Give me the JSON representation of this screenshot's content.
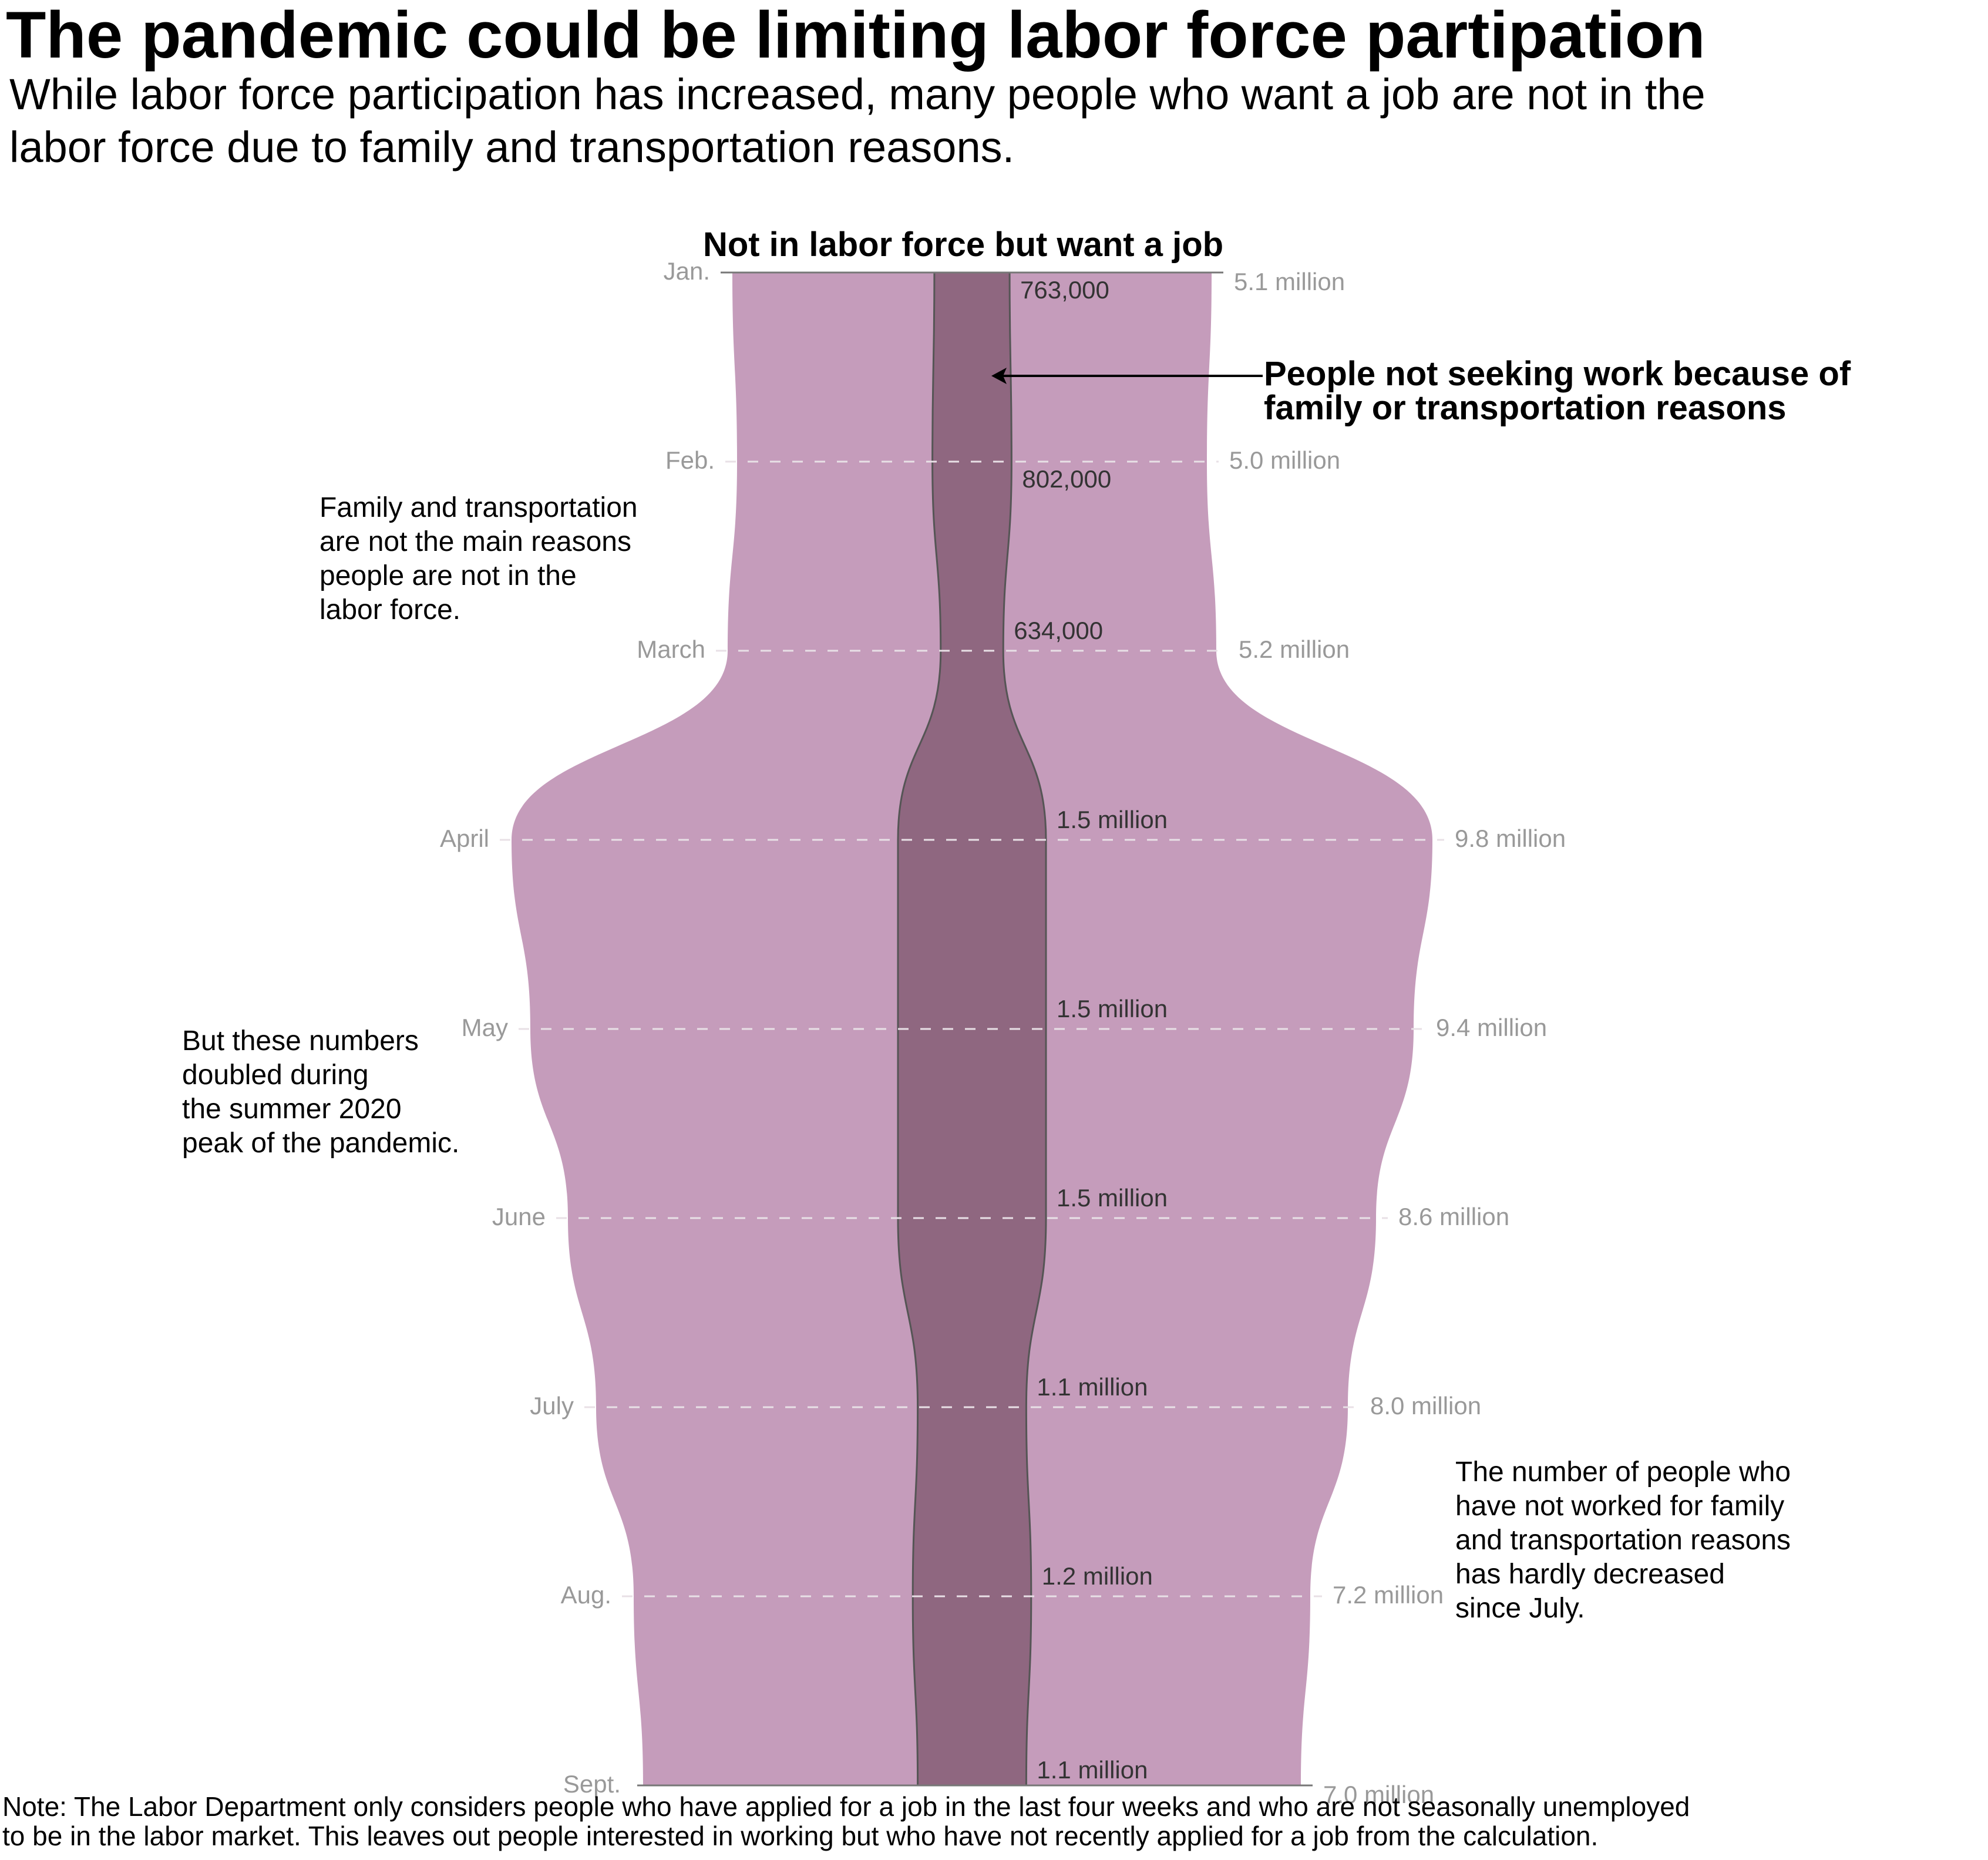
{
  "title": "The pandemic could be limiting labor force partipation",
  "subtitle_lines": [
    "While labor force participation has increased, many people who want a job are not in the",
    "labor force due to family and transportation reasons."
  ],
  "chart_title": "Not in labor force but want a job",
  "callout_lines": [
    "People not seeking work because of",
    " family or transportation reasons"
  ],
  "annotations": {
    "top_left": [
      "Family and transportation",
      "are not the main reasons",
      "people are not in the",
      "labor force."
    ],
    "middle_left": [
      "But these numbers",
      "doubled during",
      "the summer 2020",
      "peak of the pandemic."
    ],
    "bottom_right": [
      "The number of people who",
      "have not worked for family",
      "and transportation reasons",
      "has hardly decreased",
      "since July."
    ]
  },
  "note_lines": [
    "Note: The Labor Department only considers people who have applied for a job in the last four weeks and who are not seasonally unemployed",
    "to be in the labor market. This leaves out people interested in working but who have not recently applied for a job from the calculation."
  ],
  "colors": {
    "outer_fill": "#c59cbb",
    "inner_fill": "#8f6780",
    "inner_stroke": "#555555",
    "axis_label": "#999999",
    "inner_label": "#333333",
    "gridline": "#e8e0e6"
  },
  "chart_data": {
    "type": "area",
    "orientation": "vertical mirrored (violin)",
    "categories": [
      "Jan.",
      "Feb.",
      "March",
      "April",
      "May",
      "June",
      "July",
      "Aug.",
      "Sept."
    ],
    "series": [
      {
        "name": "Not in labor force but want a job",
        "values": [
          5.1,
          5.0,
          5.2,
          9.8,
          9.4,
          8.6,
          8.0,
          7.2,
          7.0
        ],
        "labels": [
          "5.1 million",
          "5.0 million",
          "5.2 million",
          "9.8 million",
          "9.4 million",
          "8.6 million",
          "8.0 million",
          "7.2 million",
          "7.0 million"
        ]
      },
      {
        "name": "People not seeking work because of family or transportation reasons",
        "values": [
          0.763,
          0.802,
          0.634,
          1.5,
          1.5,
          1.5,
          1.1,
          1.2,
          1.1
        ],
        "labels": [
          "763,000",
          "802,000",
          "634,000",
          "1.5 million",
          "1.5 million",
          "1.5 million",
          "1.1 million",
          "1.2 million",
          "1.1 million"
        ]
      }
    ],
    "units": "millions of people",
    "grid": true,
    "legend": "none"
  }
}
